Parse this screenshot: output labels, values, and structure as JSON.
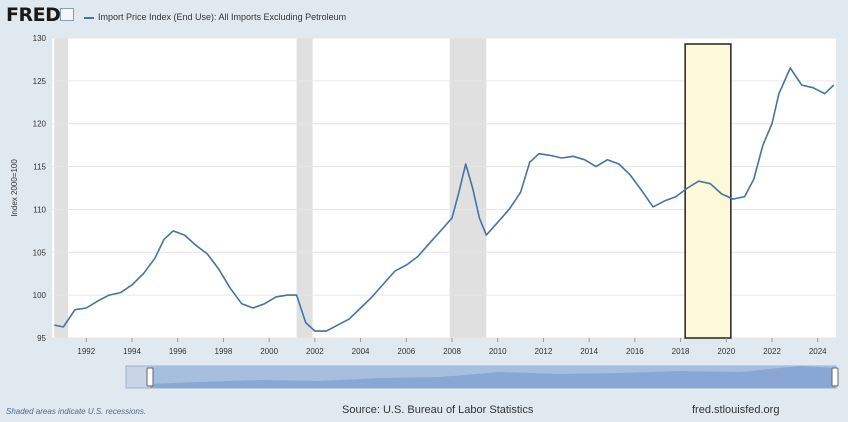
{
  "header": {
    "logo": "FRED",
    "legend_label": "Import Price Index (End Use): All Imports Excluding Petroleum"
  },
  "footer": {
    "recession_note": "Shaded areas indicate U.S. recessions.",
    "source": "Source: U.S. Bureau of Labor Statistics",
    "site": "fred.stlouisfed.org"
  },
  "colors": {
    "line": "#4572a7",
    "recession": "#e0e0e0",
    "highlight_fill": "#fbf9d8",
    "highlight_stroke": "#222222"
  },
  "chart_data": {
    "type": "line",
    "title": "",
    "ylabel": "Index 2000=100",
    "xlabel": "",
    "ylim": [
      95,
      130
    ],
    "xlim": [
      1990.5,
      2024.8
    ],
    "yticks": [
      95,
      100,
      105,
      110,
      115,
      120,
      125,
      130
    ],
    "xticks": [
      1992,
      1994,
      1996,
      1998,
      2000,
      2002,
      2004,
      2006,
      2008,
      2010,
      2012,
      2014,
      2016,
      2018,
      2020,
      2022,
      2024
    ],
    "grid": true,
    "recessions": [
      [
        1990.6,
        1991.2
      ],
      [
        2001.2,
        2001.9
      ],
      [
        2007.9,
        2009.5
      ]
    ],
    "highlight": [
      2018.2,
      2020.2
    ],
    "series": [
      {
        "name": "Import Price Index (End Use): All Imports Excluding Petroleum",
        "x": [
          1990.6,
          1991.0,
          1991.5,
          1992.0,
          1992.5,
          1993.0,
          1993.5,
          1994.0,
          1994.5,
          1995.0,
          1995.4,
          1995.8,
          1996.3,
          1996.8,
          1997.3,
          1997.8,
          1998.3,
          1998.8,
          1999.3,
          1999.8,
          2000.3,
          2000.8,
          2001.2,
          2001.6,
          2002.0,
          2002.5,
          2003.0,
          2003.5,
          2004.0,
          2004.5,
          2005.0,
          2005.5,
          2006.0,
          2006.5,
          2007.0,
          2007.5,
          2008.0,
          2008.3,
          2008.6,
          2008.9,
          2009.2,
          2009.5,
          2010.0,
          2010.5,
          2011.0,
          2011.4,
          2011.8,
          2012.3,
          2012.8,
          2013.3,
          2013.8,
          2014.3,
          2014.8,
          2015.3,
          2015.8,
          2016.3,
          2016.8,
          2017.3,
          2017.8,
          2018.3,
          2018.8,
          2019.3,
          2019.8,
          2020.3,
          2020.8,
          2021.2,
          2021.6,
          2022.0,
          2022.3,
          2022.8,
          2023.3,
          2023.8,
          2024.3,
          2024.7
        ],
        "values": [
          96.5,
          96.3,
          98.3,
          98.5,
          99.3,
          100.0,
          100.3,
          101.2,
          102.5,
          104.3,
          106.5,
          107.5,
          107.0,
          105.8,
          104.8,
          103.0,
          100.8,
          99.0,
          98.5,
          99.0,
          99.8,
          100.0,
          100.0,
          96.8,
          95.8,
          95.8,
          96.5,
          97.2,
          98.5,
          99.8,
          101.3,
          102.8,
          103.5,
          104.5,
          106.0,
          107.5,
          109.0,
          112.0,
          115.3,
          112.5,
          109.0,
          107.0,
          108.5,
          110.0,
          112.0,
          115.5,
          116.5,
          116.3,
          116.0,
          116.2,
          115.8,
          115.0,
          115.8,
          115.3,
          114.0,
          112.2,
          110.3,
          111.0,
          111.5,
          112.5,
          113.3,
          113.0,
          111.8,
          111.2,
          111.5,
          113.5,
          117.5,
          120.0,
          123.5,
          126.5,
          124.5,
          124.2,
          123.5,
          124.5
        ]
      }
    ]
  }
}
